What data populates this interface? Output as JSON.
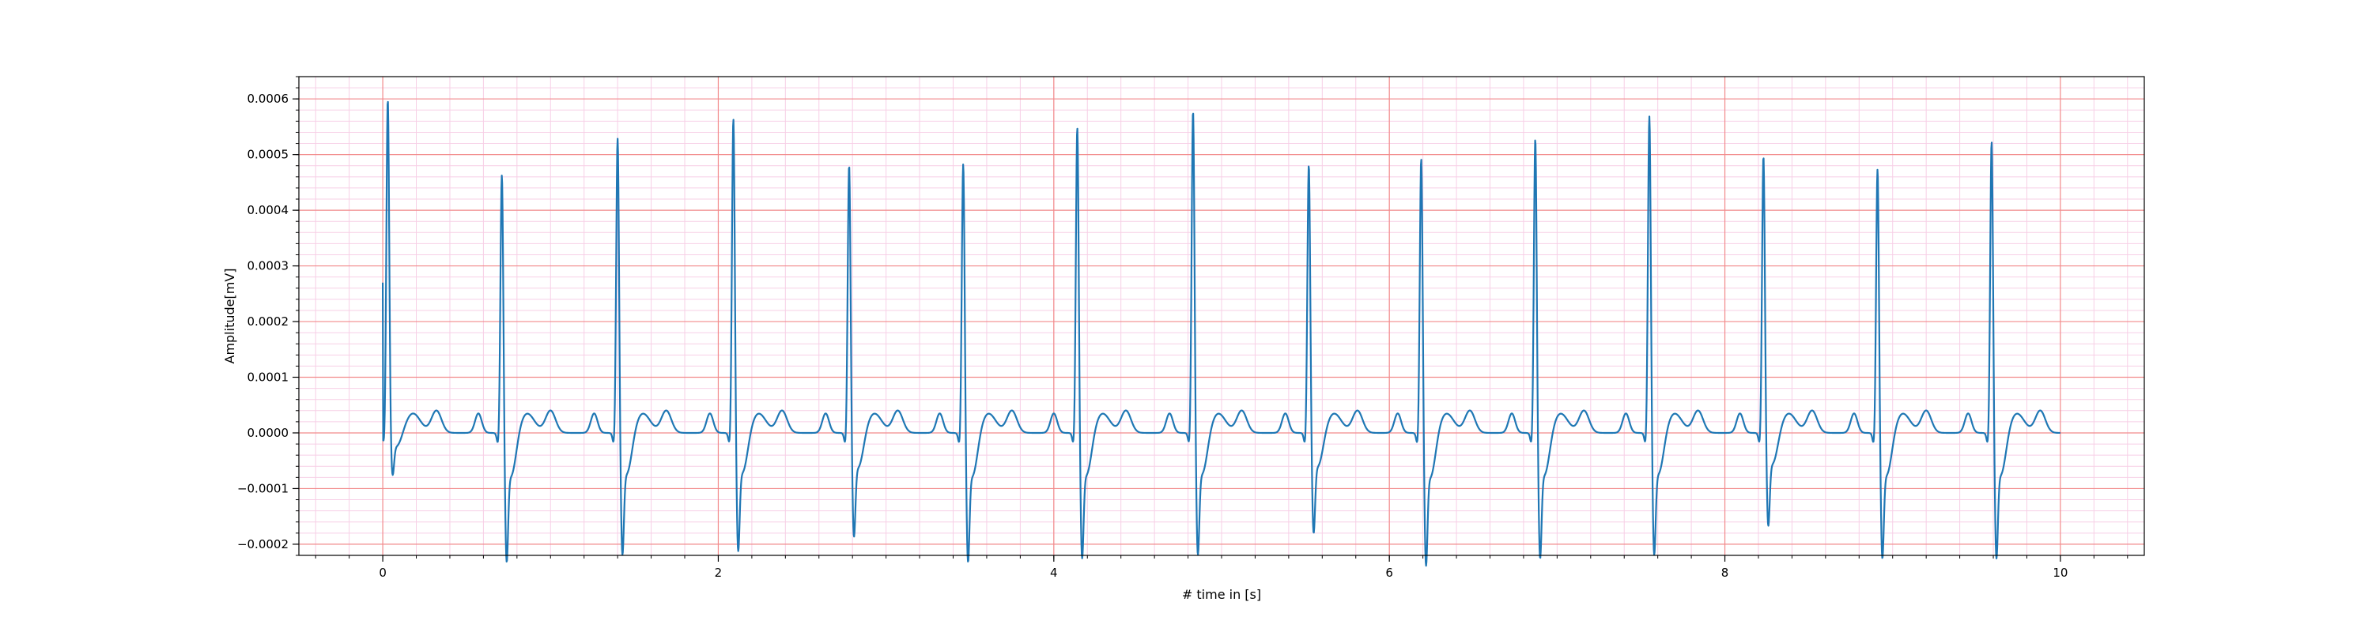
{
  "chart_data": {
    "type": "line",
    "title": "",
    "xlabel": "# time in [s]",
    "ylabel": "Amplitude[mV]",
    "xlim": [
      -0.5,
      10.5
    ],
    "ylim": [
      -0.00022,
      0.00064
    ],
    "x_ticks": [
      0,
      2,
      4,
      6,
      8,
      10
    ],
    "x_tick_labels": [
      "0",
      "2",
      "4",
      "6",
      "8",
      "10"
    ],
    "y_ticks": [
      -0.0002,
      -0.0001,
      0.0,
      0.0001,
      0.0002,
      0.0003,
      0.0004,
      0.0005,
      0.0006
    ],
    "y_tick_labels": [
      "−0.0002",
      "−0.0001",
      "0.0000",
      "0.0001",
      "0.0002",
      "0.0003",
      "0.0004",
      "0.0005",
      "0.0006"
    ],
    "grid": {
      "major": true,
      "minor": true,
      "major_color": "#f28b8b",
      "minor_color": "#f7cfe6"
    },
    "line_color": "#1f77b4",
    "series": [
      {
        "beats": [
          {
            "t": 0.03,
            "r": 0.000605,
            "s": -6e-05
          },
          {
            "t": 0.71,
            "r": 0.00048,
            "s": -0.00018
          },
          {
            "t": 1.4,
            "r": 0.000545,
            "s": -0.00017
          },
          {
            "t": 2.09,
            "r": 0.00058,
            "s": -0.000165
          },
          {
            "t": 2.78,
            "r": 0.000495,
            "s": -0.000145
          },
          {
            "t": 3.46,
            "r": 0.0005,
            "s": -0.00018
          },
          {
            "t": 4.14,
            "r": 0.000565,
            "s": -0.000175
          },
          {
            "t": 4.83,
            "r": 0.000595,
            "s": -0.00017
          },
          {
            "t": 5.52,
            "r": 0.000495,
            "s": -0.00014
          },
          {
            "t": 6.19,
            "r": 0.00051,
            "s": -0.000185
          },
          {
            "t": 6.87,
            "r": 0.000545,
            "s": -0.000175
          },
          {
            "t": 7.55,
            "r": 0.000585,
            "s": -0.00017
          },
          {
            "t": 8.23,
            "r": 0.00051,
            "s": -0.00013
          },
          {
            "t": 8.91,
            "r": 0.00049,
            "s": -0.000175
          },
          {
            "t": 9.59,
            "r": 0.00054,
            "s": -0.000175
          }
        ],
        "t_end": 10.0
      }
    ]
  }
}
